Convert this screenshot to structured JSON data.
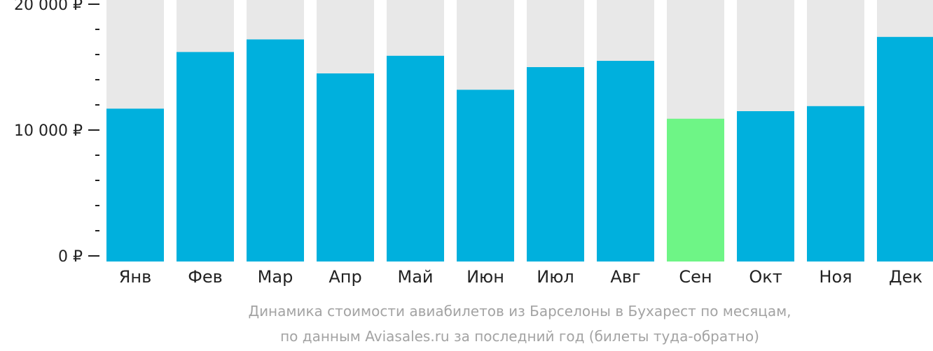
{
  "chart_data": {
    "type": "bar",
    "categories": [
      "Янв",
      "Фев",
      "Мар",
      "Апр",
      "Май",
      "Июн",
      "Июл",
      "Авг",
      "Сен",
      "Окт",
      "Ноя",
      "Дек"
    ],
    "values": [
      11700,
      16200,
      17200,
      14500,
      15900,
      13200,
      15000,
      15500,
      10900,
      11500,
      11900,
      17400
    ],
    "highlight_index": 8,
    "ylim": [
      0,
      20000
    ],
    "yticks": [
      {
        "value": 0,
        "label": "0 ₽"
      },
      {
        "value": 10000,
        "label": "10 000 ₽"
      },
      {
        "value": 20000,
        "label": "20 000 ₽"
      }
    ],
    "minor_tick_step": 2000,
    "title": "",
    "xlabel": "",
    "ylabel": "",
    "caption_line1": "Динамика стоимости авиабилетов из Барселоны в Бухарест по месяцам,",
    "caption_line2": "по данным Aviasales.ru за последний год (билеты туда-обратно)",
    "colors": {
      "bar": "#00b0dd",
      "highlight": "#6ef586",
      "background_bar": "#e8e8e8",
      "axis": "#222222",
      "caption": "#a3a3a3"
    }
  }
}
